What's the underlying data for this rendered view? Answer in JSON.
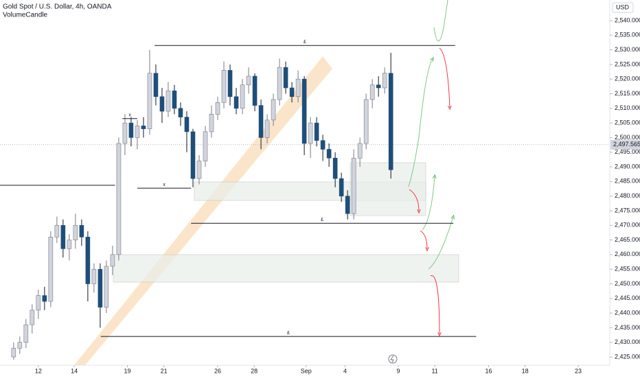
{
  "chart_data": {
    "type": "candlestick",
    "title": "Gold Spot / U.S. Dollar, 4h, OANDA",
    "subtitle": "VolumeCandle",
    "currency": "USD",
    "x": [
      0,
      1,
      2,
      3,
      4,
      5,
      6,
      7,
      8,
      9,
      10,
      11,
      12,
      13,
      14,
      15,
      16,
      17,
      18,
      19,
      20,
      21,
      22,
      23,
      24,
      25,
      26,
      27,
      28,
      29,
      30,
      31,
      32,
      33,
      34,
      35,
      36,
      37,
      38,
      39,
      40,
      41,
      42,
      43,
      44,
      45,
      46,
      47,
      48,
      49,
      50,
      51,
      52,
      53,
      54,
      55,
      56,
      57,
      58,
      59,
      60,
      61
    ],
    "open": [
      2425,
      2428,
      2430,
      2436,
      2441,
      2446,
      2444,
      2466,
      2470,
      2462,
      2465,
      2470,
      2466,
      2450,
      2455,
      2442,
      2456,
      2460,
      2498,
      2505,
      2500,
      2504,
      2503,
      2522,
      2514,
      2509,
      2516,
      2510,
      2507,
      2502,
      2486,
      2492,
      2502,
      2508,
      2512,
      2523,
      2514,
      2510,
      2518,
      2521,
      2511,
      2500,
      2506,
      2513,
      2524,
      2517,
      2514,
      2520,
      2498,
      2505,
      2499,
      2496,
      2493,
      2486,
      2480,
      2474,
      2493,
      2498,
      2513,
      2518,
      2517,
      2522
    ],
    "high": [
      2430,
      2432,
      2438,
      2443,
      2448,
      2449,
      2468,
      2473,
      2472,
      2467,
      2474,
      2472,
      2468,
      2457,
      2457,
      2458,
      2463,
      2500,
      2508,
      2507,
      2506,
      2507,
      2530,
      2525,
      2517,
      2519,
      2518,
      2512,
      2509,
      2503,
      2494,
      2504,
      2511,
      2514,
      2526,
      2525,
      2517,
      2520,
      2524,
      2522,
      2513,
      2508,
      2515,
      2527,
      2526,
      2519,
      2523,
      2521,
      2507,
      2507,
      2501,
      2498,
      2495,
      2488,
      2482,
      2496,
      2500,
      2515,
      2520,
      2521,
      2524,
      2529
    ],
    "low": [
      2424,
      2426,
      2428,
      2433,
      2438,
      2441,
      2442,
      2464,
      2459,
      2458,
      2462,
      2463,
      2444,
      2447,
      2435,
      2440,
      2453,
      2458,
      2494,
      2497,
      2496,
      2500,
      2501,
      2511,
      2505,
      2507,
      2508,
      2504,
      2495,
      2483,
      2484,
      2490,
      2500,
      2506,
      2510,
      2511,
      2508,
      2508,
      2515,
      2509,
      2496,
      2498,
      2504,
      2511,
      2515,
      2512,
      2512,
      2494,
      2493,
      2497,
      2492,
      2490,
      2483,
      2478,
      2472,
      2472,
      2490,
      2496,
      2510,
      2514,
      2515,
      2486
    ],
    "close": [
      2428,
      2430,
      2436,
      2441,
      2446,
      2444,
      2466,
      2470,
      2462,
      2465,
      2470,
      2466,
      2450,
      2455,
      2442,
      2456,
      2460,
      2498,
      2505,
      2500,
      2504,
      2503,
      2522,
      2514,
      2509,
      2516,
      2510,
      2507,
      2502,
      2486,
      2492,
      2502,
      2508,
      2512,
      2523,
      2514,
      2510,
      2518,
      2521,
      2511,
      2500,
      2506,
      2513,
      2524,
      2517,
      2514,
      2520,
      2498,
      2505,
      2499,
      2496,
      2493,
      2486,
      2480,
      2474,
      2493,
      2498,
      2513,
      2518,
      2517,
      2522,
      2489
    ],
    "up_color": "#d1d4dc",
    "down_color": "#1f4e79",
    "xlim": [
      -2.2,
      96.4
    ],
    "xticks": [
      {
        "value": 4,
        "label": "12"
      },
      {
        "value": 9.8,
        "label": "14"
      },
      {
        "value": 18.4,
        "label": "19"
      },
      {
        "value": 24.3,
        "label": "21"
      },
      {
        "value": 33,
        "label": "26"
      },
      {
        "value": 38.9,
        "label": "28"
      },
      {
        "value": 47.3,
        "label": "Sep"
      },
      {
        "value": 53.6,
        "label": "4"
      },
      {
        "value": 62.2,
        "label": "9"
      },
      {
        "value": 68.1,
        "label": "11"
      },
      {
        "value": 76.8,
        "label": "16"
      },
      {
        "value": 82.7,
        "label": "18"
      },
      {
        "value": 91.3,
        "label": "23"
      }
    ],
    "ylim": [
      2422.18,
      2547.04
    ],
    "yticks": [
      {
        "value": 2425,
        "label": "2,425.000"
      },
      {
        "value": 2430,
        "label": "2,430.000"
      },
      {
        "value": 2435,
        "label": "2,435.000"
      },
      {
        "value": 2440,
        "label": "2,440.000"
      },
      {
        "value": 2445,
        "label": "2,445.000"
      },
      {
        "value": 2450,
        "label": "2,450.000"
      },
      {
        "value": 2455,
        "label": "2,455.000"
      },
      {
        "value": 2460,
        "label": "2,460.000"
      },
      {
        "value": 2465,
        "label": "2,465.000"
      },
      {
        "value": 2470,
        "label": "2,470.000"
      },
      {
        "value": 2475,
        "label": "2,475.000"
      },
      {
        "value": 2480,
        "label": "2,480.000"
      },
      {
        "value": 2485,
        "label": "2,485.000"
      },
      {
        "value": 2490,
        "label": "2,490.000"
      },
      {
        "value": 2495,
        "label": "2,495.000"
      },
      {
        "value": 2500,
        "label": "2,500.000"
      },
      {
        "value": 2505,
        "label": "2,505.000"
      },
      {
        "value": 2510,
        "label": "2,510.000"
      },
      {
        "value": 2515,
        "label": "2,515.000"
      },
      {
        "value": 2520,
        "label": "2,520.000"
      },
      {
        "value": 2525,
        "label": "2,525.000"
      },
      {
        "value": 2530,
        "label": "2,530.000"
      },
      {
        "value": 2535,
        "label": "2,535.000"
      },
      {
        "value": 2540,
        "label": "2,540.000"
      }
    ],
    "last_price": {
      "value": 2497.565,
      "label": "2,497.565"
    },
    "levels": [
      {
        "price": 2531.5,
        "x_from": 22.8,
        "x_to": 71.4,
        "label": "£"
      },
      {
        "price": 2470.7,
        "x_from": 28.7,
        "x_to": 71.1,
        "label": "£"
      },
      {
        "price": 2432,
        "x_from": 14.1,
        "x_to": 74.8,
        "label": "£"
      },
      {
        "price": 2506.5,
        "x_from": 17.6,
        "x_to": 20,
        "label": "x"
      },
      {
        "price": 2482.7,
        "x_from": 20,
        "x_to": 28.7,
        "label": "x"
      },
      {
        "price": 2483.7,
        "x_from": -2.2,
        "x_to": 16.4
      }
    ]
  }
}
